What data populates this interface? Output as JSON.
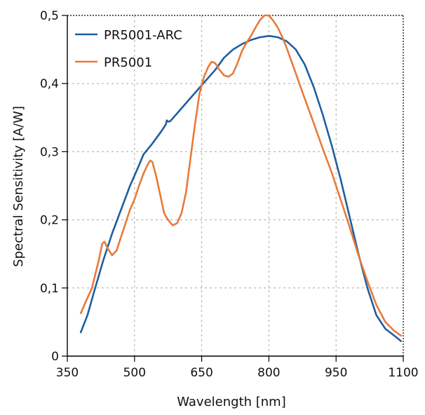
{
  "chart_data": {
    "type": "line",
    "title": "",
    "xlabel": "Wavelength [nm]",
    "ylabel": "Spectral Sensitivity [A/W]",
    "xlim": [
      350,
      1100
    ],
    "ylim": [
      0,
      0.5
    ],
    "x_ticks": [
      350,
      500,
      650,
      800,
      950,
      1100
    ],
    "x_tick_labels": [
      "350",
      "500",
      "650",
      "800",
      "950",
      "1100"
    ],
    "y_ticks": [
      0,
      0.1,
      0.2,
      0.3,
      0.4,
      0.5
    ],
    "y_tick_labels": [
      "0",
      "0,1",
      "0,2",
      "0,3",
      "0,4",
      "0,5"
    ],
    "grid": true,
    "legend_position": "top-left",
    "series": [
      {
        "name": "PR5001-ARC",
        "color": "#1f5fa0",
        "x": [
          380,
          395,
          410,
          430,
          450,
          470,
          490,
          510,
          520,
          540,
          560,
          570,
          572,
          575,
          580,
          600,
          620,
          640,
          660,
          680,
          700,
          720,
          740,
          760,
          780,
          800,
          820,
          840,
          860,
          880,
          900,
          920,
          940,
          960,
          980,
          1000,
          1020,
          1040,
          1060,
          1080,
          1095
        ],
        "y": [
          0.035,
          0.06,
          0.095,
          0.14,
          0.18,
          0.215,
          0.25,
          0.28,
          0.296,
          0.312,
          0.33,
          0.34,
          0.346,
          0.344,
          0.345,
          0.36,
          0.375,
          0.39,
          0.405,
          0.42,
          0.438,
          0.45,
          0.458,
          0.464,
          0.468,
          0.47,
          0.468,
          0.462,
          0.45,
          0.428,
          0.395,
          0.355,
          0.31,
          0.26,
          0.205,
          0.15,
          0.1,
          0.06,
          0.04,
          0.03,
          0.022
        ]
      },
      {
        "name": "PR5001",
        "color": "#e87a3a",
        "x": [
          380,
          390,
          405,
          420,
          428,
          433,
          440,
          450,
          460,
          470,
          480,
          490,
          500,
          510,
          520,
          530,
          535,
          540,
          548,
          558,
          566,
          570,
          575,
          585,
          595,
          605,
          615,
          625,
          635,
          645,
          655,
          665,
          672,
          680,
          690,
          700,
          710,
          720,
          730,
          740,
          750,
          760,
          770,
          780,
          790,
          800,
          810,
          820,
          830,
          840,
          860,
          880,
          900,
          920,
          940,
          960,
          980,
          1000,
          1020,
          1040,
          1060,
          1080,
          1095
        ],
        "y": [
          0.063,
          0.078,
          0.1,
          0.14,
          0.165,
          0.168,
          0.158,
          0.148,
          0.155,
          0.175,
          0.195,
          0.215,
          0.23,
          0.25,
          0.268,
          0.282,
          0.287,
          0.285,
          0.265,
          0.235,
          0.21,
          0.205,
          0.2,
          0.192,
          0.195,
          0.21,
          0.24,
          0.29,
          0.34,
          0.385,
          0.41,
          0.425,
          0.432,
          0.43,
          0.42,
          0.412,
          0.41,
          0.415,
          0.43,
          0.448,
          0.46,
          0.47,
          0.482,
          0.493,
          0.5,
          0.5,
          0.492,
          0.482,
          0.468,
          0.452,
          0.415,
          0.378,
          0.342,
          0.305,
          0.27,
          0.23,
          0.19,
          0.148,
          0.11,
          0.075,
          0.05,
          0.037,
          0.03
        ]
      }
    ]
  }
}
